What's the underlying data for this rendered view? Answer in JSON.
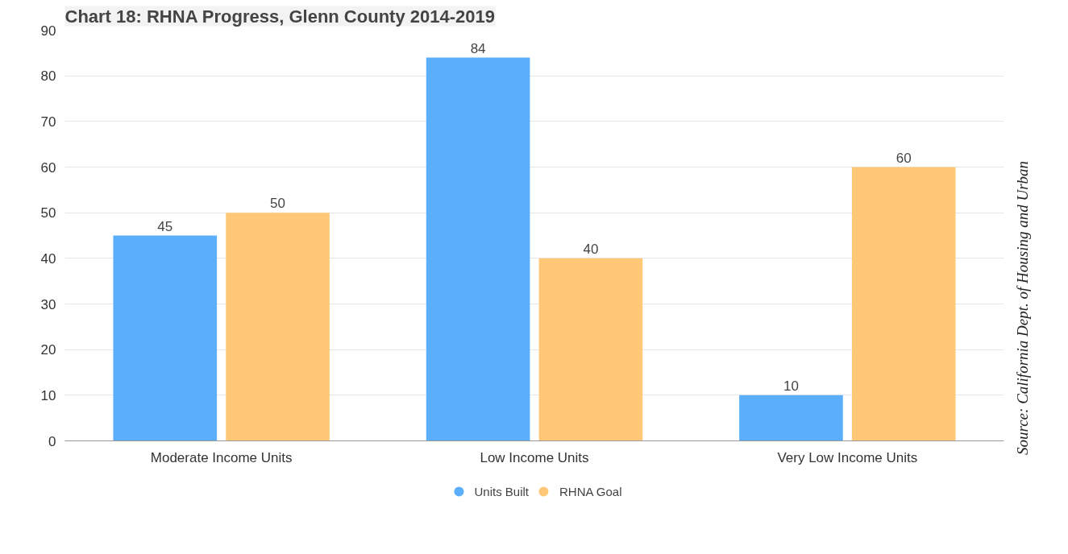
{
  "chart_data": {
    "type": "bar",
    "title": "Chart 18: RHNA Progress, Glenn County 2014-2019",
    "categories": [
      "Moderate Income Units",
      "Low Income Units",
      "Very Low Income Units"
    ],
    "series": [
      {
        "name": "Units Built",
        "color": "#5aaefc",
        "values": [
          45,
          84,
          10
        ]
      },
      {
        "name": "RHNA Goal",
        "color": "#fec877",
        "values": [
          50,
          40,
          60
        ]
      }
    ],
    "ylim": [
      0,
      90
    ],
    "yticks": [
      0,
      10,
      20,
      30,
      40,
      50,
      60,
      70,
      80,
      90
    ],
    "grid": "y",
    "legend": "bottom",
    "data_labels": true,
    "annotations": [
      "Source: California Dept. of Housing and Urban"
    ]
  }
}
